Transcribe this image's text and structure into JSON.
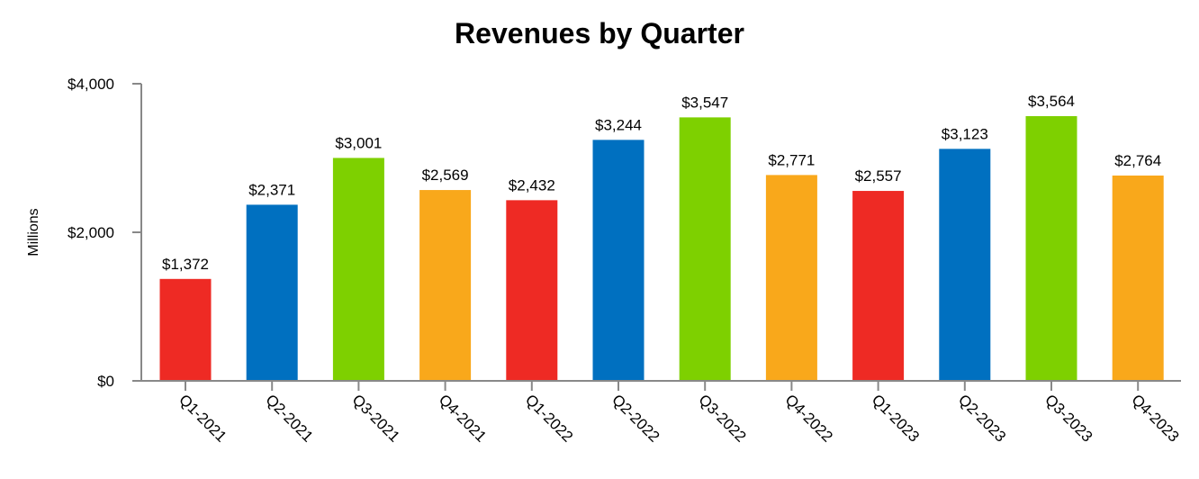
{
  "chart_data": {
    "type": "bar",
    "title": "Revenues by Quarter",
    "xlabel": "",
    "ylabel": "Millions",
    "ylim": [
      0,
      4000
    ],
    "yticks": [
      0,
      2000,
      4000
    ],
    "ytick_labels": [
      "$0",
      "$2,000",
      "$4,000"
    ],
    "grid": false,
    "categories": [
      "Q1-2021",
      "Q2-2021",
      "Q3-2021",
      "Q4-2021",
      "Q1-2022",
      "Q2-2022",
      "Q3-2022",
      "Q4-2022",
      "Q1-2023",
      "Q2-2023",
      "Q3-2023",
      "Q4-2023"
    ],
    "values": [
      1372,
      2371,
      3001,
      2569,
      2432,
      3244,
      3547,
      2771,
      2557,
      3123,
      3564,
      2764
    ],
    "data_labels": [
      "$1,372",
      "$2,371",
      "$3,001",
      "$2,569",
      "$2,432",
      "$3,244",
      "$3,547",
      "$2,771",
      "$2,557",
      "$3,123",
      "$3,564",
      "$2,764"
    ],
    "colors": [
      "#EE2A24",
      "#0070C0",
      "#7ED000",
      "#F9A81B",
      "#EE2A24",
      "#0070C0",
      "#7ED000",
      "#F9A81B",
      "#EE2A24",
      "#0070C0",
      "#7ED000",
      "#F9A81B"
    ]
  }
}
